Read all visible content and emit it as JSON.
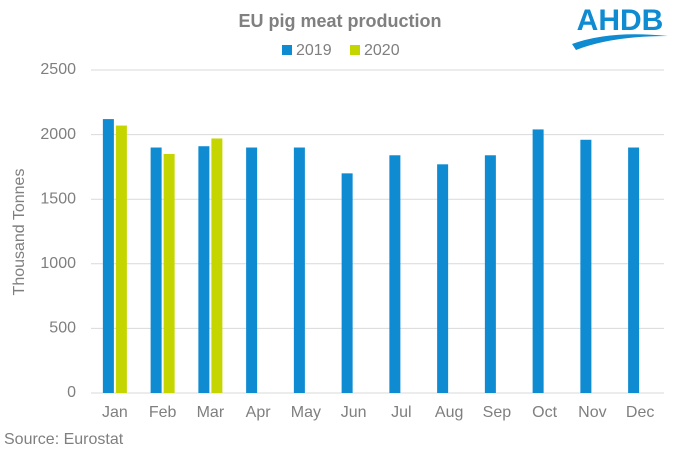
{
  "chart_data": {
    "type": "bar",
    "title": "EU pig meat production",
    "y_label": "Thousand Tonnes",
    "categories": [
      "Jan",
      "Feb",
      "Mar",
      "Apr",
      "May",
      "Jun",
      "Jul",
      "Aug",
      "Sep",
      "Oct",
      "Nov",
      "Dec"
    ],
    "series": [
      {
        "name": "2019",
        "color": "#0e8bd1",
        "values": [
          2120,
          1900,
          1910,
          1900,
          1900,
          1700,
          1840,
          1770,
          1840,
          2040,
          1960,
          1900
        ]
      },
      {
        "name": "2020",
        "color": "#c5d500",
        "values": [
          2070,
          1850,
          1970,
          null,
          null,
          null,
          null,
          null,
          null,
          null,
          null,
          null
        ]
      }
    ],
    "ylim": [
      0,
      2500
    ],
    "yticks": [
      0,
      500,
      1000,
      1500,
      2000,
      2500
    ],
    "grid": true,
    "legend": "top",
    "source": "Source: Eurostat"
  },
  "logo": "AHDB"
}
